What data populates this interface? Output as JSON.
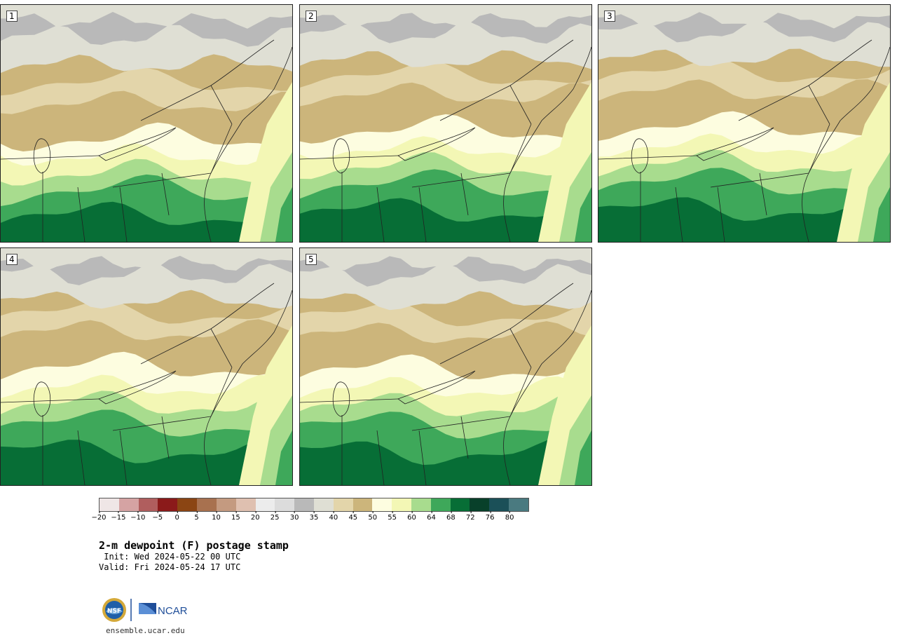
{
  "panels": [
    {
      "label": "1",
      "variant": 0
    },
    {
      "label": "2",
      "variant": 1
    },
    {
      "label": "3",
      "variant": 2
    },
    {
      "label": "4",
      "variant": 3
    },
    {
      "label": "5",
      "variant": 4
    }
  ],
  "colorbar": {
    "colors": [
      "#efe6e6",
      "#d5a3a3",
      "#b05e5e",
      "#8b1a1a",
      "#8b4513",
      "#a8714f",
      "#c49a80",
      "#dfc0b0",
      "#ececec",
      "#dcdcdc",
      "#b9b9b9",
      "#dfdfd4",
      "#e3d5aa",
      "#ccb57b",
      "#fdfde0",
      "#f3f7b5",
      "#a8dc8e",
      "#3ea85a",
      "#076e36",
      "#08402a",
      "#1b5058",
      "#4a7a80"
    ],
    "ticks": [
      "−20",
      "−15",
      "−10",
      "−5",
      "0",
      "5",
      "10",
      "15",
      "20",
      "25",
      "30",
      "35",
      "40",
      "45",
      "50",
      "55",
      "60",
      "64",
      "68",
      "72",
      "76",
      "80"
    ]
  },
  "title": "2-m dewpoint (F) postage stamp",
  "init_line": " Init: Wed 2024-05-22 00 UTC",
  "valid_line": "Valid: Fri 2024-05-24 17 UTC",
  "logos": {
    "nsf": "NSF",
    "ncar": "NCAR"
  },
  "url": "ensemble.ucar.edu"
}
